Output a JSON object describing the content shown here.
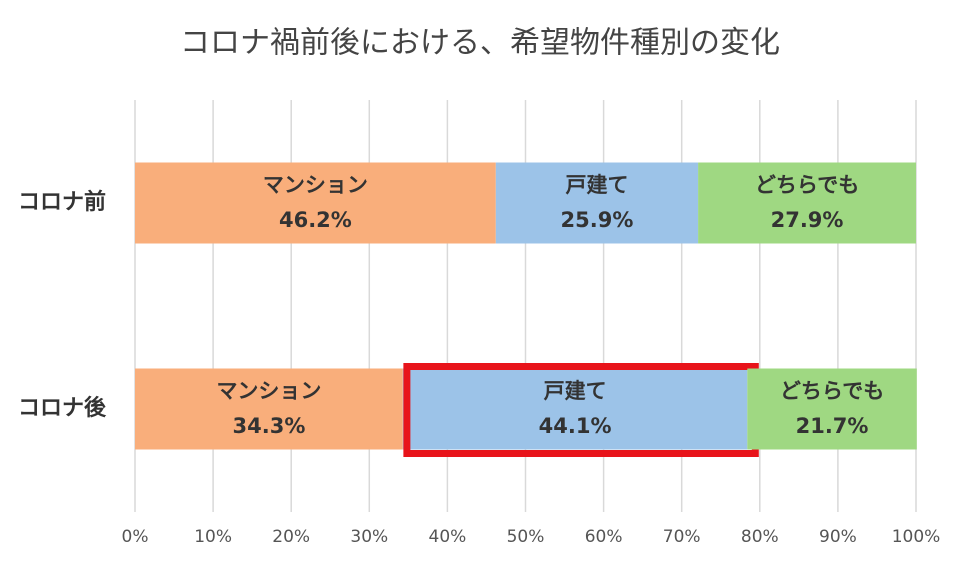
{
  "chart_data": {
    "type": "bar",
    "title": "コロナ禍前後における、希望物件種別の変化",
    "categories": [
      "コロナ前",
      "コロナ後"
    ],
    "series": [
      {
        "name": "マンション",
        "color": "#f9ae7b",
        "values": [
          46.2,
          34.3
        ],
        "value_labels": [
          "46.2%",
          "34.3%"
        ]
      },
      {
        "name": "戸建て",
        "color": "#9cc3e8",
        "values": [
          25.9,
          44.1
        ],
        "value_labels": [
          "25.9%",
          "44.1%"
        ]
      },
      {
        "name": "どちらでも",
        "color": "#9fd882",
        "values": [
          27.9,
          21.7
        ],
        "value_labels": [
          "27.9%",
          "21.7%"
        ]
      }
    ],
    "xlim": [
      0,
      100
    ],
    "xticks": [
      {
        "value": 0,
        "label": "0%"
      },
      {
        "value": 10,
        "label": "10%"
      },
      {
        "value": 20,
        "label": "20%"
      },
      {
        "value": 30,
        "label": "30%"
      },
      {
        "value": 40,
        "label": "40%"
      },
      {
        "value": 50,
        "label": "50%"
      },
      {
        "value": 60,
        "label": "60%"
      },
      {
        "value": 70,
        "label": "70%"
      },
      {
        "value": 80,
        "label": "80%"
      },
      {
        "value": 90,
        "label": "90%"
      },
      {
        "value": 100,
        "label": "100%"
      }
    ],
    "grid": true
  }
}
